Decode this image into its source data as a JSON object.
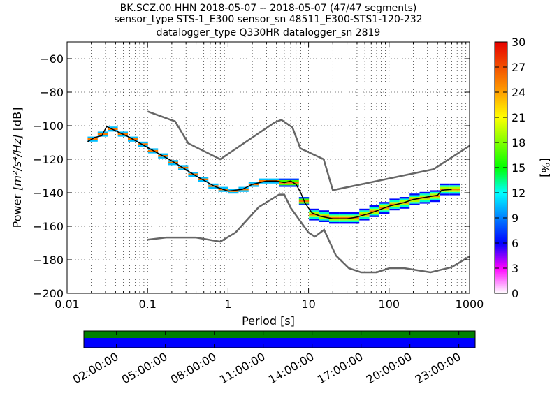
{
  "figure": {
    "title_lines": [
      "BK.SCZ.00.HHN   2018-05-07 -- 2018-05-07  (47/47 segments)",
      "sensor_type STS-1_E300 sensor_sn 48511_E300-STS1-120-232",
      "datalogger_type Q330HR datalogger_sn 2819"
    ]
  },
  "chart_data": {
    "type": "heatmap",
    "x_scale": "log",
    "xlabel": "Period [s]",
    "ylabel_main": "Power ",
    "ylabel_units": "[m²/s⁴/Hz]",
    "ylabel_db": " [dB]",
    "xlim": [
      0.01,
      1000
    ],
    "ylim": [
      -200,
      -50
    ],
    "grid": true,
    "x_ticks": [
      {
        "value": 0.01,
        "label": "0.01"
      },
      {
        "value": 0.1,
        "label": "0.1"
      },
      {
        "value": 1,
        "label": "1"
      },
      {
        "value": 10,
        "label": "10"
      },
      {
        "value": 100,
        "label": "100"
      },
      {
        "value": 1000,
        "label": "1000"
      }
    ],
    "y_ticks": [
      {
        "value": -60,
        "label": "−60"
      },
      {
        "value": -80,
        "label": "−80"
      },
      {
        "value": -100,
        "label": "−100"
      },
      {
        "value": -120,
        "label": "−120"
      },
      {
        "value": -140,
        "label": "−140"
      },
      {
        "value": -160,
        "label": "−160"
      },
      {
        "value": -180,
        "label": "−180"
      },
      {
        "value": -200,
        "label": "−200"
      }
    ],
    "nhnm": [
      [
        0.1,
        -91.5
      ],
      [
        0.22,
        -97.4
      ],
      [
        0.32,
        -110.5
      ],
      [
        0.8,
        -120
      ],
      [
        3.8,
        -98
      ],
      [
        4.6,
        -96.5
      ],
      [
        6.3,
        -101
      ],
      [
        7.9,
        -113.5
      ],
      [
        15.4,
        -120
      ],
      [
        20,
        -138.5
      ],
      [
        354.8,
        -126
      ],
      [
        1000,
        -112
      ]
    ],
    "nlnm": [
      [
        0.1,
        -168
      ],
      [
        0.17,
        -166.7
      ],
      [
        0.4,
        -166.7
      ],
      [
        0.8,
        -169.2
      ],
      [
        1.24,
        -163.7
      ],
      [
        2.4,
        -148.6
      ],
      [
        4.3,
        -141.1
      ],
      [
        5,
        -141.1
      ],
      [
        6,
        -149
      ],
      [
        10,
        -163.8
      ],
      [
        12,
        -166.2
      ],
      [
        15.6,
        -162.1
      ],
      [
        21.9,
        -177.5
      ],
      [
        31.6,
        -185
      ],
      [
        45,
        -187.5
      ],
      [
        70,
        -187.5
      ],
      [
        101,
        -185
      ],
      [
        154,
        -185
      ],
      [
        328,
        -187.5
      ],
      [
        600,
        -184.4
      ],
      [
        1000,
        -178
      ]
    ],
    "median": [
      [
        0.018,
        -109.5
      ],
      [
        0.022,
        -107
      ],
      [
        0.027,
        -106
      ],
      [
        0.031,
        -100.5
      ],
      [
        0.04,
        -103
      ],
      [
        0.06,
        -107
      ],
      [
        0.1,
        -113
      ],
      [
        0.2,
        -121
      ],
      [
        0.4,
        -130
      ],
      [
        0.7,
        -136.5
      ],
      [
        1,
        -139
      ],
      [
        1.5,
        -138
      ],
      [
        2,
        -135
      ],
      [
        3,
        -133
      ],
      [
        4,
        -133
      ],
      [
        5,
        -134
      ],
      [
        6,
        -133
      ],
      [
        7,
        -135
      ],
      [
        8,
        -140
      ],
      [
        9,
        -146
      ],
      [
        11,
        -152
      ],
      [
        14,
        -154
      ],
      [
        20,
        -155.5
      ],
      [
        30,
        -155.5
      ],
      [
        40,
        -154.5
      ],
      [
        60,
        -152
      ],
      [
        100,
        -148
      ],
      [
        150,
        -146
      ],
      [
        200,
        -144
      ],
      [
        300,
        -142.5
      ],
      [
        400,
        -141.5
      ],
      [
        450,
        -138.5
      ],
      [
        600,
        -138
      ]
    ],
    "colorbar": {
      "label": "[%]",
      "min": 0,
      "max": 30,
      "ticks": [
        {
          "value": 0,
          "label": "0"
        },
        {
          "value": 3,
          "label": "3"
        },
        {
          "value": 6,
          "label": "6"
        },
        {
          "value": 9,
          "label": "9"
        },
        {
          "value": 12,
          "label": "12"
        },
        {
          "value": 15,
          "label": "15"
        },
        {
          "value": 18,
          "label": "18"
        },
        {
          "value": 21,
          "label": "21"
        },
        {
          "value": 24,
          "label": "24"
        },
        {
          "value": 27,
          "label": "27"
        },
        {
          "value": 30,
          "label": "30"
        }
      ]
    },
    "time_ticks": [
      "02:00:00",
      "05:00:00",
      "08:00:00",
      "11:00:00",
      "14:00:00",
      "17:00:00",
      "20:00:00",
      "23:00:00"
    ],
    "coverage_colors": {
      "top": "#008000",
      "bottom": "#0000ff"
    }
  }
}
